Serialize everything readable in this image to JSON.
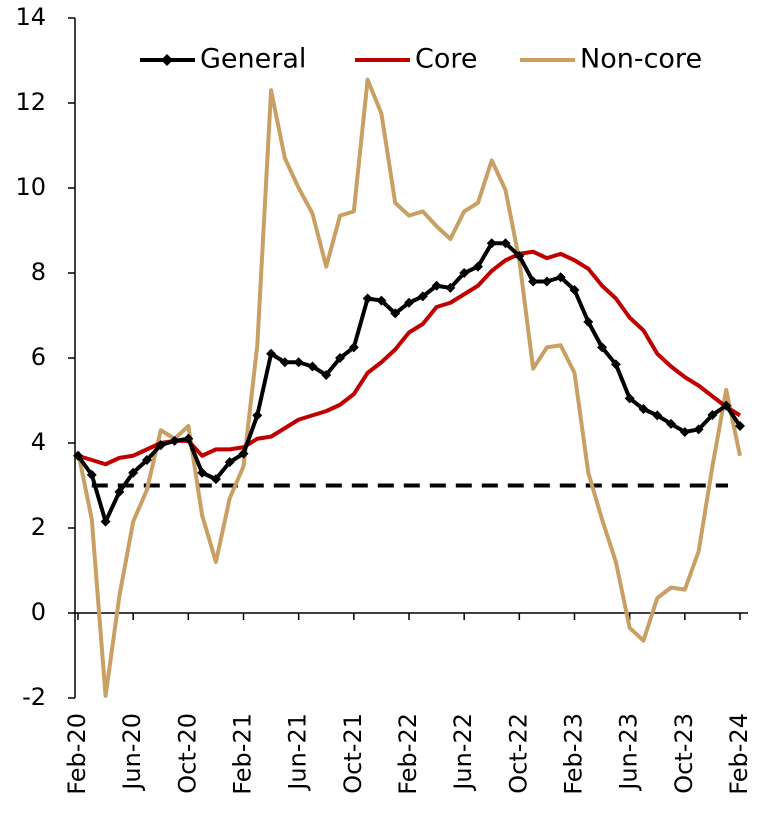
{
  "chart_data": {
    "type": "line",
    "categories": [
      "Feb-20",
      null,
      null,
      null,
      "Jun-20",
      null,
      null,
      null,
      "Oct-20",
      null,
      null,
      null,
      "Feb-21",
      null,
      null,
      null,
      "Jun-21",
      null,
      null,
      null,
      "Oct-21",
      null,
      null,
      null,
      "Feb-22",
      null,
      null,
      null,
      "Jun-22",
      null,
      null,
      null,
      "Oct-22",
      null,
      null,
      null,
      "Feb-23",
      null,
      null,
      null,
      "Jun-23",
      null,
      null,
      null,
      "Oct-23",
      null,
      null,
      null,
      "Feb-24"
    ],
    "series": [
      {
        "name": "General",
        "color": "#000000",
        "marker": true,
        "values": [
          3.7,
          3.25,
          2.15,
          2.85,
          3.3,
          3.6,
          3.95,
          4.05,
          4.1,
          3.3,
          3.15,
          3.55,
          3.75,
          4.65,
          6.1,
          5.9,
          5.9,
          5.8,
          5.6,
          6.0,
          6.25,
          7.4,
          7.35,
          7.05,
          7.3,
          7.45,
          7.7,
          7.65,
          8.0,
          8.15,
          8.7,
          8.7,
          8.4,
          7.8,
          7.8,
          7.9,
          7.6,
          6.85,
          6.25,
          5.85,
          5.05,
          4.8,
          4.65,
          4.45,
          4.26,
          4.32,
          4.66,
          4.88,
          4.4
        ]
      },
      {
        "name": "Core",
        "color": "#c00000",
        "marker": false,
        "values": [
          3.7,
          3.6,
          3.5,
          3.65,
          3.7,
          3.85,
          4.0,
          4.05,
          4.05,
          3.7,
          3.85,
          3.85,
          3.9,
          4.1,
          4.15,
          4.35,
          4.55,
          4.65,
          4.75,
          4.9,
          5.15,
          5.65,
          5.9,
          6.2,
          6.6,
          6.8,
          7.2,
          7.3,
          7.5,
          7.7,
          8.05,
          8.3,
          8.45,
          8.5,
          8.35,
          8.45,
          8.3,
          8.1,
          7.7,
          7.4,
          6.95,
          6.65,
          6.1,
          5.8,
          5.55,
          5.35,
          5.1,
          4.85,
          4.65
        ]
      },
      {
        "name": "Non-core",
        "color": "#c8a064",
        "marker": false,
        "values": [
          3.8,
          2.2,
          -1.95,
          0.4,
          2.15,
          2.9,
          4.3,
          4.1,
          4.4,
          2.3,
          1.2,
          2.7,
          3.45,
          6.3,
          12.3,
          10.7,
          10.0,
          9.4,
          8.15,
          9.35,
          9.45,
          12.55,
          11.75,
          9.65,
          9.35,
          9.45,
          9.1,
          8.8,
          9.45,
          9.65,
          10.65,
          9.95,
          8.3,
          5.75,
          6.25,
          6.3,
          5.65,
          3.3,
          2.2,
          1.2,
          -0.35,
          -0.65,
          0.35,
          0.6,
          0.55,
          1.45,
          3.45,
          5.25,
          3.7
        ]
      }
    ],
    "reference_line": {
      "value": 3,
      "color": "#000000",
      "dashed": true
    },
    "ylim": [
      -2,
      14
    ],
    "yticks": [
      -2,
      0,
      2,
      4,
      6,
      8,
      10,
      12,
      14
    ],
    "legend": "top"
  }
}
